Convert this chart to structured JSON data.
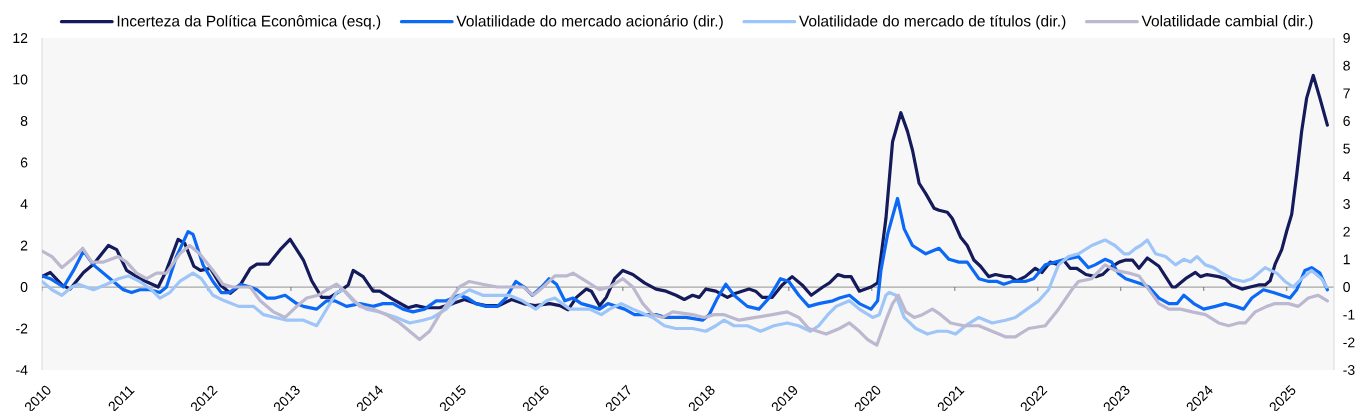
{
  "chart_data": {
    "type": "line",
    "xlim": [
      2010,
      2025.57
    ],
    "xticks": [
      2010,
      2011,
      2012,
      2013,
      2014,
      2015,
      2016,
      2017,
      2018,
      2019,
      2020,
      2021,
      2022,
      2023,
      2024,
      2025
    ],
    "ylim": [
      -4,
      12
    ],
    "yticks": [
      -4,
      -2,
      0,
      2,
      4,
      6,
      8,
      10,
      12
    ],
    "y2lim": [
      -3,
      9
    ],
    "y2ticks": [
      -3,
      -2,
      -1,
      0,
      1,
      2,
      3,
      4,
      5,
      6,
      7,
      8,
      9
    ],
    "legend": "top",
    "ref_lines": [
      {
        "axis": "y",
        "value": 0,
        "color": "#595959"
      }
    ],
    "series": [
      {
        "name": "Incerteza da Política Econômica (esq.)",
        "color": "#151a5b",
        "x": [
          2010.0,
          2010.1,
          2010.24,
          2010.34,
          2010.5,
          2010.62,
          2010.8,
          2010.9,
          2011.02,
          2011.18,
          2011.4,
          2011.5,
          2011.64,
          2011.72,
          2011.83,
          2011.91,
          2012.03,
          2012.15,
          2012.27,
          2012.39,
          2012.51,
          2012.59,
          2012.73,
          2012.87,
          2012.99,
          2013.15,
          2013.25,
          2013.37,
          2013.47,
          2013.59,
          2013.69,
          2013.75,
          2013.87,
          2013.99,
          2014.07,
          2014.23,
          2014.41,
          2014.51,
          2014.63,
          2014.79,
          2014.95,
          2015.09,
          2015.23,
          2015.35,
          2015.5,
          2015.66,
          2015.8,
          2015.94,
          2016.12,
          2016.24,
          2016.34,
          2016.44,
          2016.56,
          2016.62,
          2016.72,
          2016.8,
          2016.9,
          2017.0,
          2017.12,
          2017.26,
          2017.4,
          2017.52,
          2017.64,
          2017.74,
          2017.84,
          2017.92,
          2018.0,
          2018.12,
          2018.26,
          2018.36,
          2018.52,
          2018.6,
          2018.68,
          2018.8,
          2018.92,
          2019.04,
          2019.16,
          2019.27,
          2019.41,
          2019.49,
          2019.59,
          2019.67,
          2019.75,
          2019.85,
          2019.99,
          2020.07,
          2020.17,
          2020.25,
          2020.35,
          2020.43,
          2020.49,
          2020.57,
          2020.65,
          2020.75,
          2020.81,
          2020.91,
          2020.97,
          2021.07,
          2021.15,
          2021.23,
          2021.31,
          2021.41,
          2021.49,
          2021.61,
          2021.67,
          2021.75,
          2021.85,
          2021.97,
          2022.05,
          2022.15,
          2022.23,
          2022.31,
          2022.39,
          2022.47,
          2022.58,
          2022.7,
          2022.78,
          2022.86,
          2022.98,
          2023.06,
          2023.14,
          2023.22,
          2023.32,
          2023.46,
          2023.54,
          2023.62,
          2023.66,
          2023.78,
          2023.9,
          2023.96,
          2024.04,
          2024.18,
          2024.26,
          2024.34,
          2024.46,
          2024.56,
          2024.66,
          2024.74,
          2024.8,
          2024.86,
          2024.94,
          2025.0,
          2025.06,
          2025.12,
          2025.18,
          2025.24,
          2025.32,
          2025.4,
          2025.49
        ],
        "values": [
          0.5,
          0.7,
          0.1,
          -0.1,
          0.7,
          1.1,
          2.0,
          1.8,
          0.8,
          0.4,
          0.0,
          0.8,
          2.3,
          2.1,
          1.0,
          0.8,
          0.9,
          0.1,
          -0.3,
          0.1,
          0.9,
          1.1,
          1.1,
          1.8,
          2.3,
          1.3,
          0.3,
          -0.5,
          -0.5,
          -0.2,
          0.1,
          0.8,
          0.5,
          -0.2,
          -0.2,
          -0.6,
          -1.0,
          -0.9,
          -1.0,
          -1.0,
          -0.8,
          -0.6,
          -0.8,
          -0.9,
          -0.9,
          -0.6,
          -0.8,
          -0.9,
          -0.8,
          -0.9,
          -1.1,
          -0.5,
          -0.1,
          -0.2,
          -0.9,
          -0.5,
          0.4,
          0.8,
          0.6,
          0.2,
          -0.1,
          -0.2,
          -0.4,
          -0.6,
          -0.4,
          -0.5,
          -0.1,
          -0.2,
          -0.5,
          -0.3,
          -0.1,
          -0.2,
          -0.5,
          -0.5,
          0.1,
          0.5,
          0.1,
          -0.4,
          0.0,
          0.2,
          0.6,
          0.5,
          0.5,
          -0.2,
          0.0,
          0.2,
          3.3,
          7.0,
          8.4,
          7.5,
          6.6,
          5.0,
          4.5,
          3.8,
          3.7,
          3.6,
          3.3,
          2.4,
          2.0,
          1.3,
          1.0,
          0.5,
          0.6,
          0.5,
          0.5,
          0.3,
          0.5,
          0.9,
          0.7,
          1.2,
          1.1,
          1.3,
          0.9,
          0.9,
          0.6,
          0.5,
          0.6,
          0.9,
          1.2,
          1.3,
          1.3,
          0.9,
          1.4,
          1.0,
          0.5,
          0.0,
          0.0,
          0.4,
          0.7,
          0.5,
          0.6,
          0.5,
          0.4,
          0.1,
          -0.1,
          0.0,
          0.1,
          0.1,
          0.3,
          1.1,
          1.8,
          2.7,
          3.5,
          5.4,
          7.5,
          9.1,
          10.2,
          9.1,
          7.8
        ]
      },
      {
        "name": "Volatilidade do mercado acionário (dir.)",
        "color": "#0b69f5",
        "axis": "y2",
        "x": [
          2010.0,
          2010.1,
          2010.26,
          2010.38,
          2010.5,
          2010.62,
          2010.74,
          2010.86,
          2010.98,
          2011.08,
          2011.18,
          2011.3,
          2011.42,
          2011.5,
          2011.62,
          2011.76,
          2011.82,
          2011.94,
          2012.06,
          2012.16,
          2012.26,
          2012.39,
          2012.51,
          2012.59,
          2012.71,
          2012.81,
          2012.93,
          2013.07,
          2013.15,
          2013.31,
          2013.43,
          2013.53,
          2013.67,
          2013.83,
          2013.99,
          2014.11,
          2014.23,
          2014.35,
          2014.47,
          2014.61,
          2014.75,
          2014.87,
          2015.03,
          2015.13,
          2015.23,
          2015.35,
          2015.49,
          2015.59,
          2015.71,
          2015.81,
          2015.91,
          2016.02,
          2016.11,
          2016.2,
          2016.3,
          2016.4,
          2016.5,
          2016.62,
          2016.72,
          2016.82,
          2016.92,
          2017.02,
          2017.14,
          2017.26,
          2017.4,
          2017.52,
          2017.66,
          2017.76,
          2017.96,
          2018.04,
          2018.14,
          2018.24,
          2018.34,
          2018.5,
          2018.64,
          2018.76,
          2018.9,
          2019.0,
          2019.12,
          2019.24,
          2019.36,
          2019.53,
          2019.61,
          2019.73,
          2019.85,
          2019.99,
          2020.07,
          2020.11,
          2020.19,
          2020.31,
          2020.39,
          2020.49,
          2020.65,
          2020.81,
          2020.93,
          2021.05,
          2021.15,
          2021.29,
          2021.41,
          2021.51,
          2021.59,
          2021.69,
          2021.85,
          2021.95,
          2022.09,
          2022.21,
          2022.33,
          2022.49,
          2022.61,
          2022.69,
          2022.81,
          2022.89,
          2022.97,
          2023.06,
          2023.16,
          2023.26,
          2023.34,
          2023.46,
          2023.58,
          2023.68,
          2023.76,
          2023.88,
          2024.0,
          2024.14,
          2024.26,
          2024.38,
          2024.48,
          2024.58,
          2024.72,
          2024.84,
          2024.94,
          2025.04,
          2025.12,
          2025.22,
          2025.3,
          2025.4,
          2025.49
        ],
        "values": [
          0.4,
          0.3,
          0.0,
          0.6,
          1.3,
          0.8,
          0.5,
          0.2,
          -0.1,
          -0.2,
          -0.1,
          -0.1,
          -0.2,
          0.0,
          1.1,
          2.0,
          1.9,
          0.8,
          0.2,
          -0.2,
          -0.2,
          0.1,
          0.0,
          -0.1,
          -0.4,
          -0.4,
          -0.3,
          -0.6,
          -0.7,
          -0.8,
          -0.5,
          -0.5,
          -0.7,
          -0.6,
          -0.7,
          -0.6,
          -0.6,
          -0.8,
          -0.9,
          -0.8,
          -0.5,
          -0.5,
          -0.3,
          -0.4,
          -0.6,
          -0.7,
          -0.7,
          -0.4,
          0.2,
          0.0,
          -0.3,
          0.0,
          0.3,
          0.1,
          -0.5,
          -0.4,
          -0.6,
          -0.7,
          -0.8,
          -0.6,
          -0.7,
          -0.8,
          -1.0,
          -1.0,
          -1.0,
          -1.1,
          -1.1,
          -1.1,
          -1.2,
          -1.0,
          -0.4,
          0.1,
          -0.3,
          -0.7,
          -0.8,
          -0.4,
          0.3,
          0.2,
          -0.3,
          -0.7,
          -0.6,
          -0.5,
          -0.4,
          -0.3,
          -0.6,
          -0.8,
          -0.5,
          0.6,
          1.9,
          3.2,
          2.1,
          1.5,
          1.2,
          1.4,
          1.0,
          0.9,
          0.9,
          0.3,
          0.2,
          0.2,
          0.1,
          0.2,
          0.2,
          0.3,
          0.8,
          0.9,
          1.0,
          1.1,
          0.7,
          0.8,
          1.0,
          0.9,
          0.5,
          0.3,
          0.2,
          0.1,
          0.0,
          -0.4,
          -0.6,
          -0.6,
          -0.3,
          -0.6,
          -0.8,
          -0.7,
          -0.6,
          -0.7,
          -0.8,
          -0.4,
          -0.1,
          -0.2,
          -0.3,
          -0.4,
          -0.1,
          0.6,
          0.7,
          0.5,
          -0.1
        ]
      },
      {
        "name": "Volatilidade do mercado de títulos (dir.)",
        "color": "#9ec5f8",
        "axis": "y2",
        "x": [
          2010.0,
          2010.12,
          2010.24,
          2010.36,
          2010.44,
          2010.62,
          2010.78,
          2010.92,
          2011.04,
          2011.18,
          2011.32,
          2011.42,
          2011.54,
          2011.66,
          2011.82,
          2011.92,
          2012.06,
          2012.2,
          2012.37,
          2012.47,
          2012.55,
          2012.67,
          2012.81,
          2012.95,
          2013.15,
          2013.31,
          2013.43,
          2013.55,
          2013.63,
          2013.75,
          2013.91,
          2014.07,
          2014.27,
          2014.43,
          2014.59,
          2014.71,
          2014.87,
          2014.99,
          2015.15,
          2015.31,
          2015.49,
          2015.63,
          2015.79,
          2015.95,
          2016.08,
          2016.18,
          2016.36,
          2016.48,
          2016.6,
          2016.74,
          2016.84,
          2016.98,
          2017.12,
          2017.36,
          2017.5,
          2017.64,
          2017.84,
          2018.0,
          2018.12,
          2018.22,
          2018.34,
          2018.5,
          2018.66,
          2018.82,
          2018.98,
          2019.12,
          2019.26,
          2019.36,
          2019.47,
          2019.57,
          2019.73,
          2019.85,
          2020.01,
          2020.09,
          2020.17,
          2020.21,
          2020.29,
          2020.39,
          2020.53,
          2020.67,
          2020.79,
          2020.91,
          2021.01,
          2021.13,
          2021.29,
          2021.45,
          2021.61,
          2021.73,
          2021.87,
          2022.01,
          2022.13,
          2022.25,
          2022.37,
          2022.49,
          2022.65,
          2022.81,
          2022.93,
          2023.04,
          2023.1,
          2023.18,
          2023.24,
          2023.32,
          2023.42,
          2023.54,
          2023.66,
          2023.76,
          2023.84,
          2023.92,
          2024.02,
          2024.12,
          2024.22,
          2024.34,
          2024.48,
          2024.58,
          2024.74,
          2024.88,
          2024.98,
          2025.08,
          2025.18,
          2025.3,
          2025.42,
          2025.48
        ],
        "values": [
          0.2,
          -0.1,
          -0.3,
          0.0,
          0.1,
          -0.1,
          0.1,
          0.3,
          0.4,
          0.2,
          -0.1,
          -0.4,
          -0.2,
          0.2,
          0.5,
          0.3,
          -0.3,
          -0.5,
          -0.7,
          -0.7,
          -0.7,
          -1.0,
          -1.1,
          -1.2,
          -1.2,
          -1.4,
          -0.8,
          -0.2,
          -0.1,
          -0.5,
          -0.8,
          -0.9,
          -1.1,
          -1.3,
          -1.2,
          -1.1,
          -0.8,
          -0.4,
          -0.1,
          -0.3,
          -0.3,
          -0.3,
          -0.5,
          -0.8,
          -0.5,
          -0.4,
          -0.8,
          -0.8,
          -0.8,
          -1.0,
          -0.8,
          -0.6,
          -0.8,
          -1.1,
          -1.4,
          -1.5,
          -1.5,
          -1.6,
          -1.4,
          -1.2,
          -1.4,
          -1.4,
          -1.6,
          -1.4,
          -1.3,
          -1.4,
          -1.6,
          -1.4,
          -1.0,
          -0.7,
          -0.5,
          -0.8,
          -1.1,
          -1.0,
          -0.3,
          -0.2,
          -0.3,
          -1.1,
          -1.5,
          -1.7,
          -1.6,
          -1.6,
          -1.7,
          -1.4,
          -1.1,
          -1.3,
          -1.2,
          -1.1,
          -0.8,
          -0.5,
          -0.1,
          0.8,
          1.1,
          1.2,
          1.5,
          1.7,
          1.5,
          1.2,
          1.2,
          1.4,
          1.5,
          1.7,
          1.2,
          1.1,
          0.8,
          1.0,
          0.9,
          1.1,
          0.8,
          0.7,
          0.5,
          0.3,
          0.2,
          0.3,
          0.7,
          0.5,
          0.2,
          0.0,
          0.3,
          0.6,
          0.3,
          0.0
        ]
      },
      {
        "name": "Volatilidade cambial (dir.)",
        "color": "#bbb8cf",
        "axis": "y2",
        "x": [
          2010.0,
          2010.12,
          2010.24,
          2010.36,
          2010.49,
          2010.6,
          2010.74,
          2010.92,
          2011.02,
          2011.14,
          2011.26,
          2011.38,
          2011.5,
          2011.66,
          2011.78,
          2011.9,
          2012.06,
          2012.18,
          2012.3,
          2012.51,
          2012.63,
          2012.79,
          2012.93,
          2013.07,
          2013.19,
          2013.33,
          2013.43,
          2013.55,
          2013.67,
          2013.83,
          2013.99,
          2014.15,
          2014.31,
          2014.43,
          2014.55,
          2014.67,
          2014.79,
          2014.91,
          2015.03,
          2015.15,
          2015.31,
          2015.49,
          2015.63,
          2015.8,
          2015.92,
          2016.04,
          2016.18,
          2016.32,
          2016.4,
          2016.56,
          2016.72,
          2016.84,
          2017.0,
          2017.12,
          2017.24,
          2017.36,
          2017.48,
          2017.6,
          2017.84,
          2017.98,
          2018.1,
          2018.22,
          2018.4,
          2018.6,
          2018.8,
          2018.98,
          2019.12,
          2019.24,
          2019.45,
          2019.61,
          2019.73,
          2019.85,
          2019.95,
          2020.06,
          2020.17,
          2020.25,
          2020.32,
          2020.41,
          2020.51,
          2020.61,
          2020.73,
          2020.83,
          2020.95,
          2021.11,
          2021.29,
          2021.45,
          2021.61,
          2021.73,
          2021.89,
          2022.09,
          2022.25,
          2022.41,
          2022.49,
          2022.65,
          2022.81,
          2022.93,
          2023.1,
          2023.22,
          2023.34,
          2023.46,
          2023.58,
          2023.72,
          2023.86,
          2024.02,
          2024.18,
          2024.3,
          2024.42,
          2024.5,
          2024.62,
          2024.76,
          2024.86,
          2025.02,
          2025.14,
          2025.26,
          2025.38,
          2025.49
        ],
        "values": [
          1.3,
          1.1,
          0.7,
          1.0,
          1.4,
          0.9,
          0.9,
          1.1,
          0.9,
          0.5,
          0.3,
          0.5,
          0.5,
          1.2,
          1.5,
          1.2,
          0.6,
          0.1,
          0.0,
          0.0,
          -0.5,
          -0.9,
          -1.1,
          -0.7,
          -0.4,
          -0.3,
          -0.1,
          0.1,
          -0.2,
          -0.7,
          -0.8,
          -1.0,
          -1.3,
          -1.6,
          -1.9,
          -1.6,
          -1.0,
          -0.5,
          0.0,
          0.2,
          0.1,
          0.0,
          0.0,
          0.0,
          -0.3,
          0.0,
          0.4,
          0.4,
          0.5,
          0.2,
          -0.1,
          0.0,
          0.3,
          0.0,
          -0.6,
          -1.0,
          -1.1,
          -0.9,
          -1.0,
          -1.1,
          -1.0,
          -1.0,
          -1.2,
          -1.1,
          -1.0,
          -0.9,
          -1.1,
          -1.5,
          -1.7,
          -1.5,
          -1.3,
          -1.6,
          -1.9,
          -2.1,
          -1.2,
          -0.6,
          -0.3,
          -0.9,
          -1.1,
          -1.0,
          -0.8,
          -1.0,
          -1.3,
          -1.4,
          -1.4,
          -1.6,
          -1.8,
          -1.8,
          -1.5,
          -1.4,
          -0.8,
          -0.1,
          0.2,
          0.3,
          0.8,
          0.6,
          0.5,
          0.4,
          -0.1,
          -0.6,
          -0.8,
          -0.8,
          -0.9,
          -1.0,
          -1.3,
          -1.4,
          -1.3,
          -1.3,
          -0.9,
          -0.7,
          -0.6,
          -0.6,
          -0.7,
          -0.4,
          -0.3,
          -0.5
        ]
      }
    ]
  }
}
